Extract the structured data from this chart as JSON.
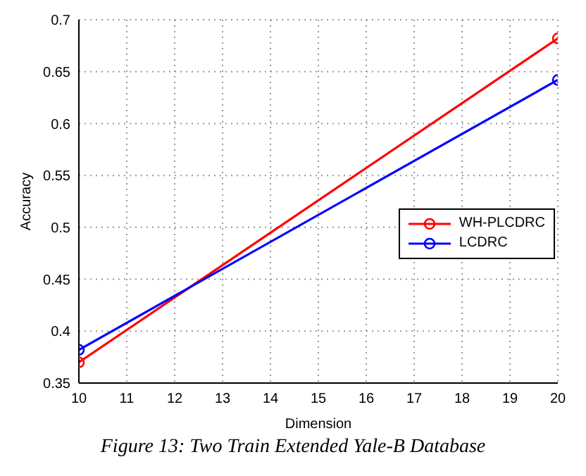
{
  "chart_data": {
    "type": "line",
    "xlabel": "Dimension",
    "ylabel": "Accuracy",
    "x": [
      10,
      20
    ],
    "series": [
      {
        "name": "WH-PLCDRC",
        "color": "#ff0000",
        "values": [
          0.37,
          0.682
        ]
      },
      {
        "name": "LCDRC",
        "color": "#0000ff",
        "values": [
          0.382,
          0.642
        ]
      }
    ],
    "xlim": [
      10,
      20
    ],
    "xticks": [
      10,
      11,
      12,
      13,
      14,
      15,
      16,
      17,
      18,
      19,
      20
    ],
    "ylim": [
      0.35,
      0.7
    ],
    "yticks": [
      0.35,
      0.4,
      0.45,
      0.5,
      0.55,
      0.6,
      0.65,
      0.7
    ],
    "grid": true,
    "legend": "right",
    "marker": "circle",
    "line_style": "solid",
    "annotations": [
      "Figure 13: Two Train Extended Yale-B Database"
    ]
  }
}
